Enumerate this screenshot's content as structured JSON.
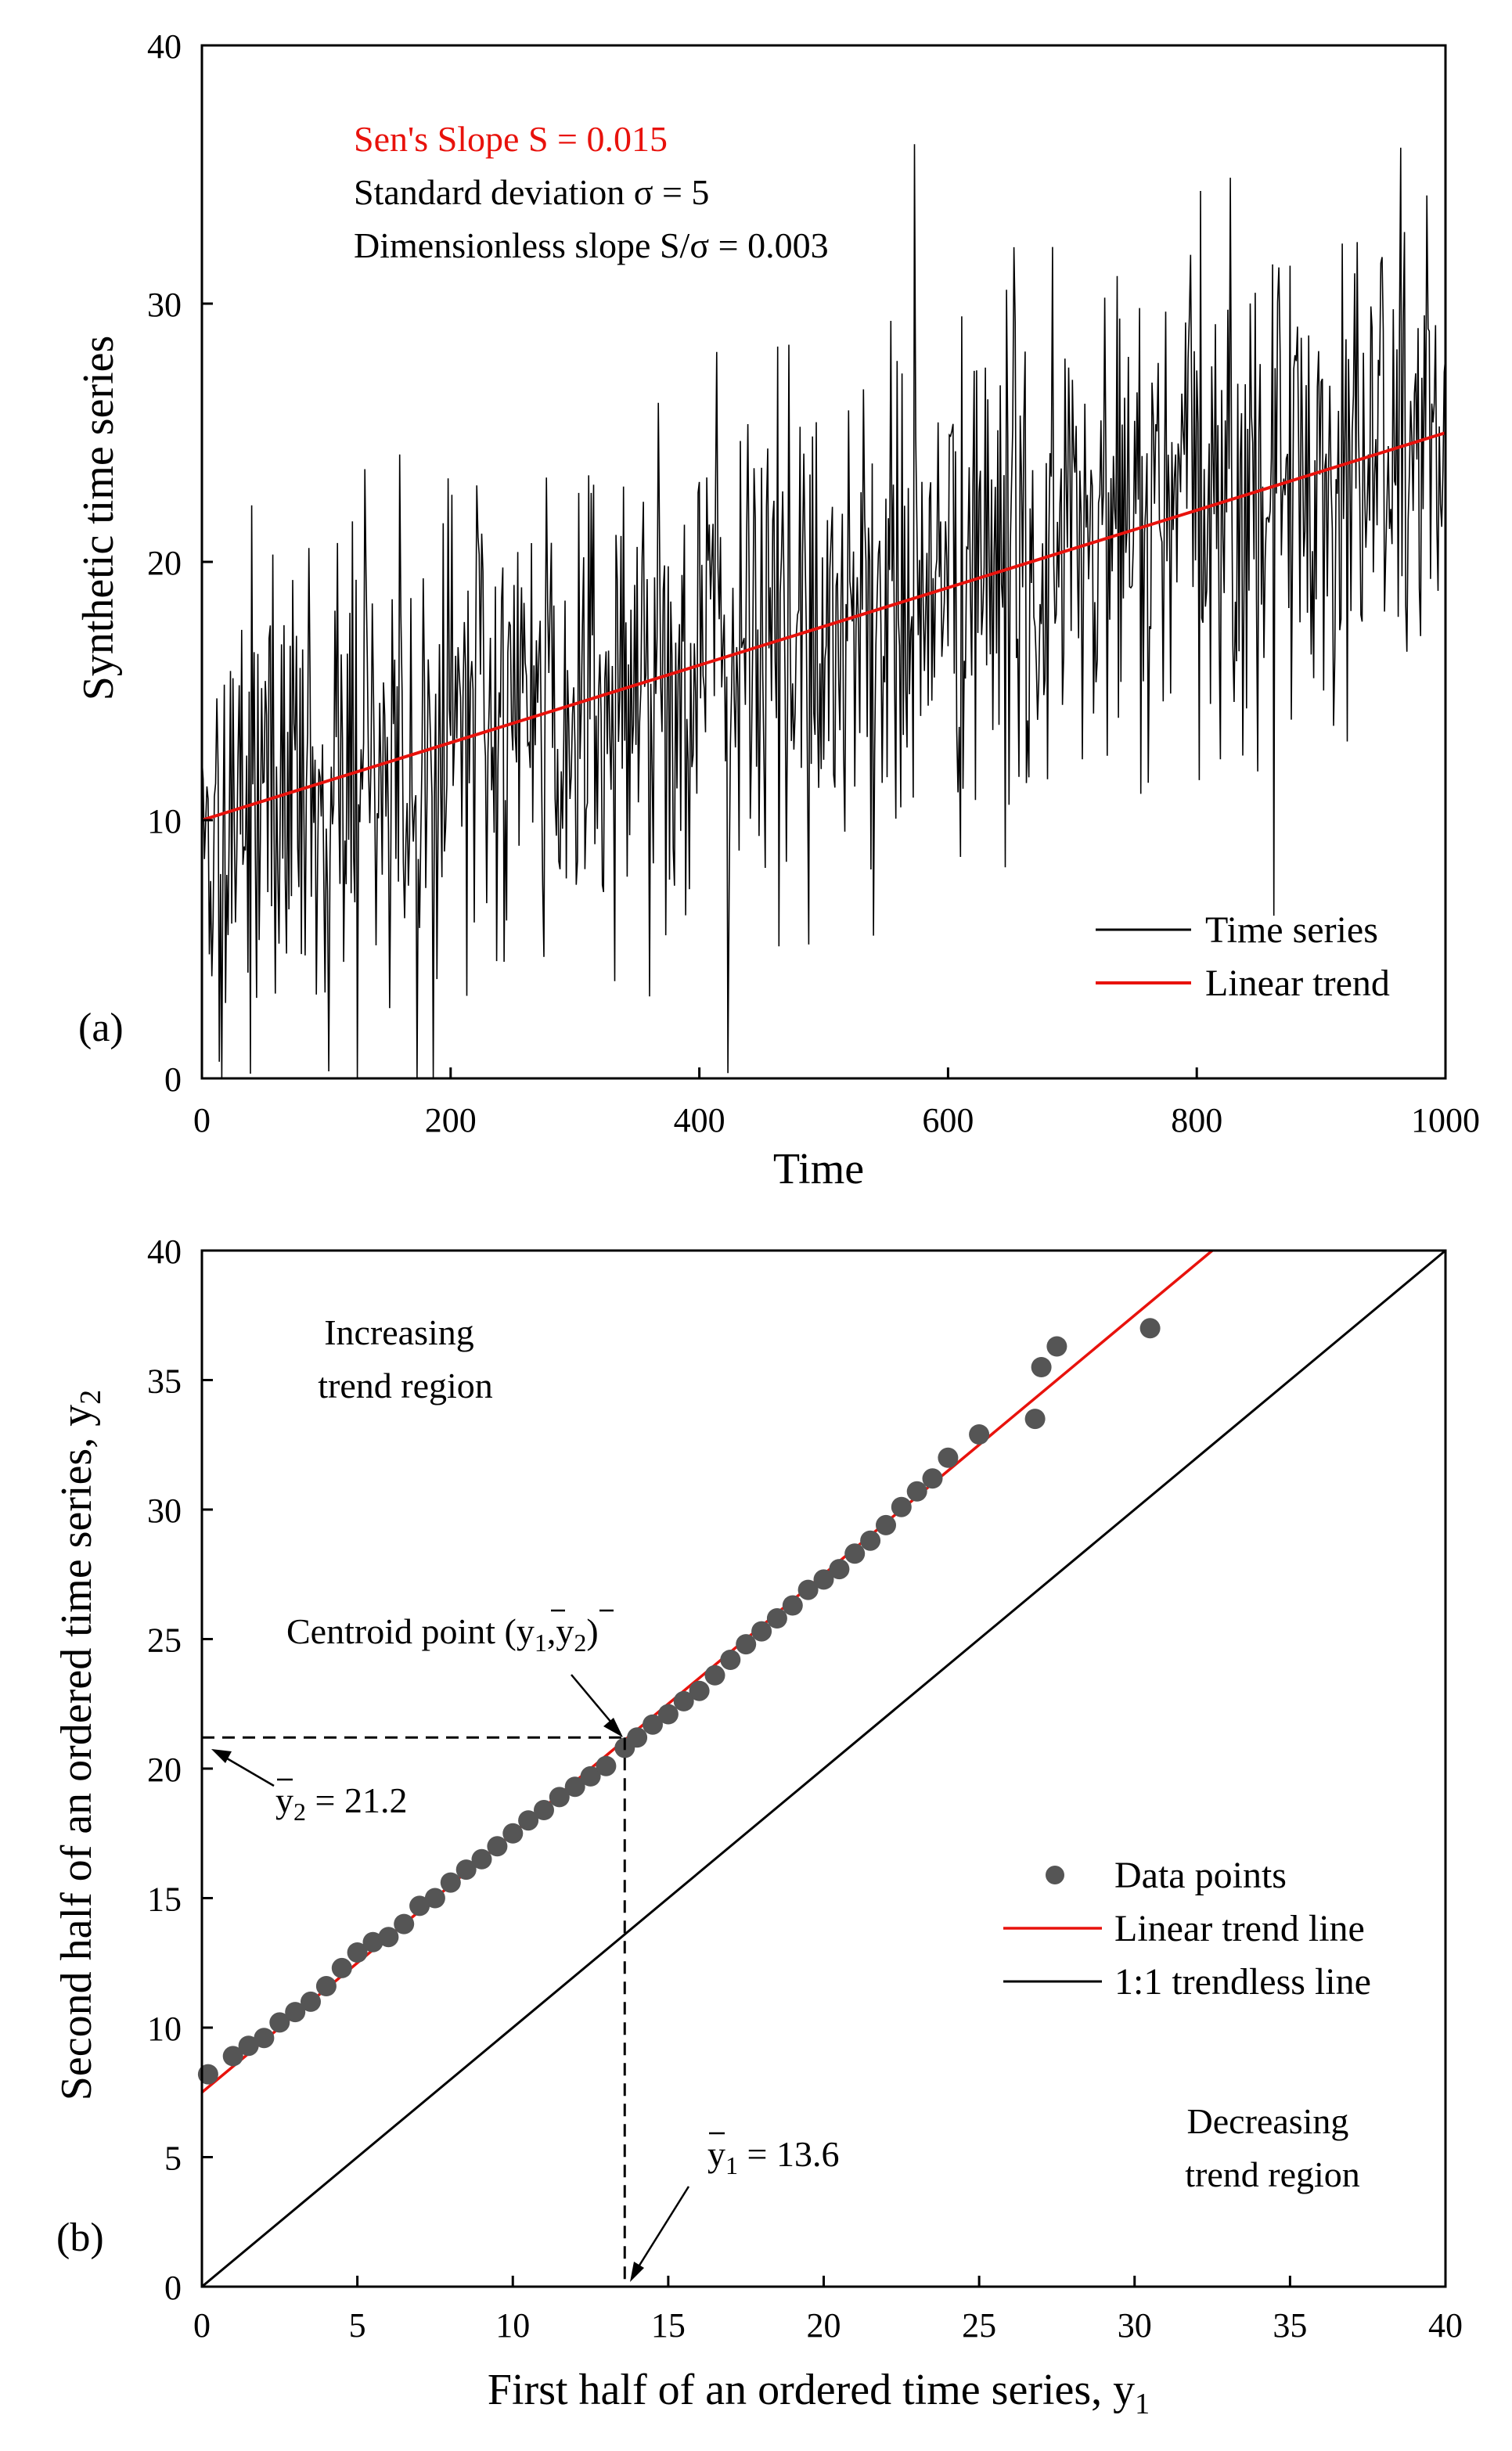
{
  "chart_data": [
    {
      "panel_label": "(a)",
      "type": "line",
      "xlabel": "Time",
      "ylabel": "Synthetic time series",
      "xlim": [
        0,
        1000
      ],
      "ylim": [
        0,
        40
      ],
      "x_ticks": [
        "0",
        "200",
        "400",
        "600",
        "800",
        "1000"
      ],
      "y_ticks": [
        "0",
        "10",
        "20",
        "30",
        "40"
      ],
      "annotations": {
        "sen_slope": "Sen's Slope S = 0.015",
        "std": "Standard deviation σ = 5",
        "dimless": "Dimensionless slope S/σ = 0.003"
      },
      "legend": {
        "position": "bottom-right",
        "entries": [
          "Time series",
          "Linear trend"
        ]
      },
      "series": [
        {
          "name": "Time series",
          "style": "noisy",
          "n": 1000,
          "trend_start": 10,
          "trend_slope": 0.015,
          "std": 5,
          "color": "#000000"
        },
        {
          "name": "Linear trend",
          "x": [
            0,
            1000
          ],
          "y": [
            10,
            25
          ],
          "color": "#e8120c"
        }
      ]
    },
    {
      "panel_label": "(b)",
      "type": "scatter",
      "xlabel": "First half of an ordered time series, y",
      "xlabel_sub": "1",
      "ylabel": "Second half of an ordered time series, y",
      "ylabel_sub": "2",
      "xlim": [
        0,
        40
      ],
      "ylim": [
        0,
        40
      ],
      "x_ticks": [
        "0",
        "5",
        "10",
        "15",
        "20",
        "25",
        "30",
        "35",
        "40"
      ],
      "y_ticks": [
        "0",
        "5",
        "10",
        "15",
        "20",
        "25",
        "30",
        "35",
        "40"
      ],
      "annotations": {
        "increasing_1": "Increasing",
        "increasing_2": "trend region",
        "decreasing_1": "Decreasing",
        "decreasing_2": "trend region",
        "centroid_text": "Centroid point (",
        "y1_label": "y",
        "y1_sub": "1",
        "y1_value": " = 13.6",
        "y2_label": "y",
        "y2_sub": "2",
        "y2_value": " = 21.2"
      },
      "centroid": {
        "x": 13.6,
        "y": 21.2
      },
      "legend": {
        "position": "middle-right",
        "entries": [
          "Data points",
          "Linear trend line",
          "1:1 trendless line"
        ]
      },
      "series": [
        {
          "name": "Data points",
          "color": "#555555",
          "points": [
            [
              0.2,
              8.2
            ],
            [
              1.0,
              8.9
            ],
            [
              1.5,
              9.3
            ],
            [
              2.0,
              9.6
            ],
            [
              2.5,
              10.2
            ],
            [
              3.0,
              10.6
            ],
            [
              3.5,
              11.0
            ],
            [
              4.0,
              11.6
            ],
            [
              4.5,
              12.3
            ],
            [
              5.0,
              12.9
            ],
            [
              5.5,
              13.3
            ],
            [
              6.0,
              13.5
            ],
            [
              6.5,
              14.0
            ],
            [
              7.0,
              14.7
            ],
            [
              7.5,
              15.0
            ],
            [
              8.0,
              15.6
            ],
            [
              8.5,
              16.1
            ],
            [
              9.0,
              16.5
            ],
            [
              9.5,
              17.0
            ],
            [
              10.0,
              17.5
            ],
            [
              10.5,
              18.0
            ],
            [
              11.0,
              18.4
            ],
            [
              11.5,
              18.9
            ],
            [
              12.0,
              19.3
            ],
            [
              12.5,
              19.7
            ],
            [
              13.0,
              20.1
            ],
            [
              13.6,
              20.8
            ],
            [
              14.0,
              21.2
            ],
            [
              14.5,
              21.7
            ],
            [
              15.0,
              22.1
            ],
            [
              15.5,
              22.6
            ],
            [
              16.0,
              23.0
            ],
            [
              16.5,
              23.6
            ],
            [
              17.0,
              24.2
            ],
            [
              17.5,
              24.8
            ],
            [
              18.0,
              25.3
            ],
            [
              18.5,
              25.8
            ],
            [
              19.0,
              26.3
            ],
            [
              19.5,
              26.9
            ],
            [
              20.0,
              27.3
            ],
            [
              20.5,
              27.7
            ],
            [
              21.0,
              28.3
            ],
            [
              21.5,
              28.8
            ],
            [
              22.0,
              29.4
            ],
            [
              22.5,
              30.1
            ],
            [
              23.0,
              30.7
            ],
            [
              23.5,
              31.2
            ],
            [
              24.0,
              32.0
            ],
            [
              25.0,
              32.9
            ],
            [
              26.8,
              33.5
            ],
            [
              27.0,
              35.5
            ],
            [
              27.5,
              36.3
            ],
            [
              30.5,
              37.0
            ]
          ]
        },
        {
          "name": "Linear trend line",
          "x": [
            0,
            32.5
          ],
          "y": [
            7.5,
            40
          ],
          "color": "#e8120c"
        },
        {
          "name": "1:1 trendless line",
          "x": [
            0,
            40
          ],
          "y": [
            0,
            40
          ],
          "color": "#000000"
        }
      ]
    }
  ]
}
